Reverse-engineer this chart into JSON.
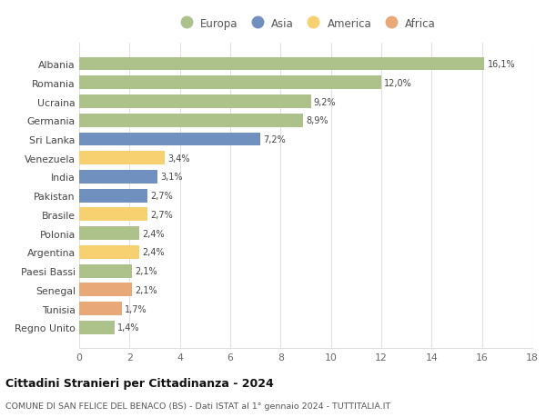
{
  "countries": [
    "Albania",
    "Romania",
    "Ucraina",
    "Germania",
    "Sri Lanka",
    "Venezuela",
    "India",
    "Pakistan",
    "Brasile",
    "Polonia",
    "Argentina",
    "Paesi Bassi",
    "Senegal",
    "Tunisia",
    "Regno Unito"
  ],
  "values": [
    16.1,
    12.0,
    9.2,
    8.9,
    7.2,
    3.4,
    3.1,
    2.7,
    2.7,
    2.4,
    2.4,
    2.1,
    2.1,
    1.7,
    1.4
  ],
  "labels": [
    "16,1%",
    "12,0%",
    "9,2%",
    "8,9%",
    "7,2%",
    "3,4%",
    "3,1%",
    "2,7%",
    "2,7%",
    "2,4%",
    "2,4%",
    "2,1%",
    "2,1%",
    "1,7%",
    "1,4%"
  ],
  "continents": [
    "Europa",
    "Europa",
    "Europa",
    "Europa",
    "Asia",
    "America",
    "Asia",
    "Asia",
    "America",
    "Europa",
    "America",
    "Europa",
    "Africa",
    "Africa",
    "Europa"
  ],
  "continent_colors": {
    "Europa": "#adc18a",
    "Asia": "#7090bf",
    "America": "#f7d070",
    "Africa": "#e8a878"
  },
  "legend_order": [
    "Europa",
    "Asia",
    "America",
    "Africa"
  ],
  "title1": "Cittadini Stranieri per Cittadinanza - 2024",
  "title2": "COMUNE DI SAN FELICE DEL BENACO (BS) - Dati ISTAT al 1° gennaio 2024 - TUTTITALIA.IT",
  "xlim": [
    0,
    18
  ],
  "xticks": [
    0,
    2,
    4,
    6,
    8,
    10,
    12,
    14,
    16,
    18
  ],
  "background_color": "#ffffff",
  "grid_color": "#e0e0e0",
  "bar_height": 0.72
}
